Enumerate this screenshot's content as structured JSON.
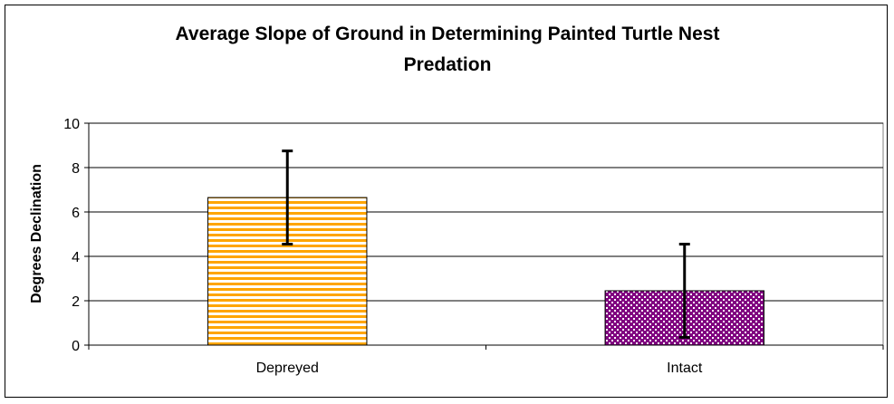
{
  "chart_data": {
    "type": "bar",
    "title_lines": [
      "Average Slope of Ground in Determining Painted Turtle Nest",
      "Predation"
    ],
    "xlabel": "",
    "ylabel": "Degrees Declination",
    "categories": [
      "Depreyed",
      "Intact"
    ],
    "values": [
      6.65,
      2.45
    ],
    "error_low": [
      4.55,
      0.35
    ],
    "error_high": [
      8.75,
      4.55
    ],
    "ylim": [
      0,
      10
    ],
    "yticks": [
      0,
      2,
      4,
      6,
      8,
      10
    ],
    "grid": true,
    "legend": "none",
    "bar_fills": [
      {
        "pattern": "horizontal-stripes",
        "base": "#ffffff",
        "color": "#ffa500"
      },
      {
        "pattern": "checker-dots",
        "base": "#800080",
        "color": "#ffffff"
      }
    ]
  }
}
